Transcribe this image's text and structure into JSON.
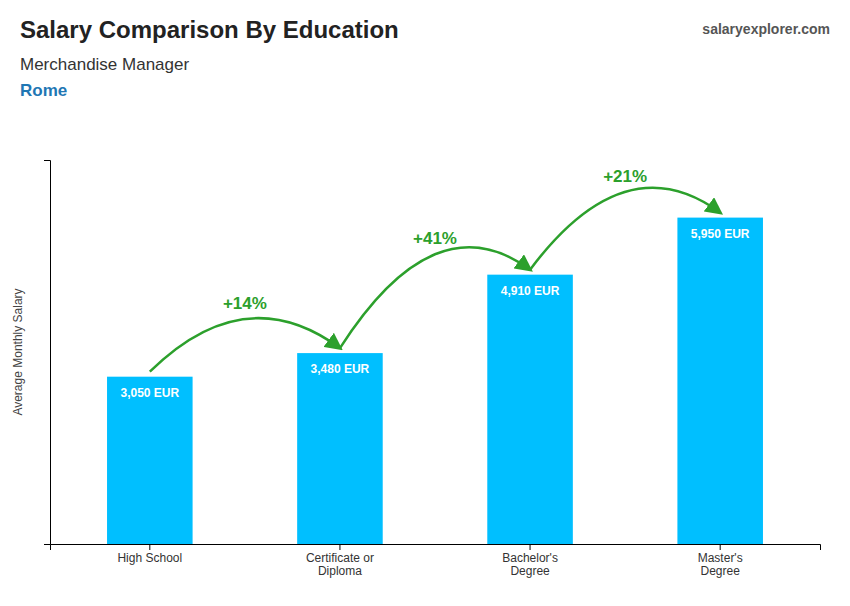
{
  "chart_data": {
    "type": "bar",
    "title": "Salary Comparison By Education",
    "subtitle": [
      "Merchandise Manager",
      "Rome"
    ],
    "source": "salaryexplorer.com",
    "ylabel": "Average Monthly Salary",
    "categories": [
      "High School",
      "Certificate or\nDiploma",
      "Bachelor's\nDegree",
      "Master's\nDegree"
    ],
    "values": [
      3050,
      3480,
      4910,
      5950
    ],
    "value_labels": [
      "3,050 EUR",
      "3,480 EUR",
      "4,910 EUR",
      "5,950 EUR"
    ],
    "data_labels": true,
    "annotations": [
      "+14%",
      "+41%",
      "+21%"
    ],
    "color": "#00BFFF",
    "ylim": [
      0,
      7000
    ],
    "tick_labels": "x",
    "grid": false
  }
}
